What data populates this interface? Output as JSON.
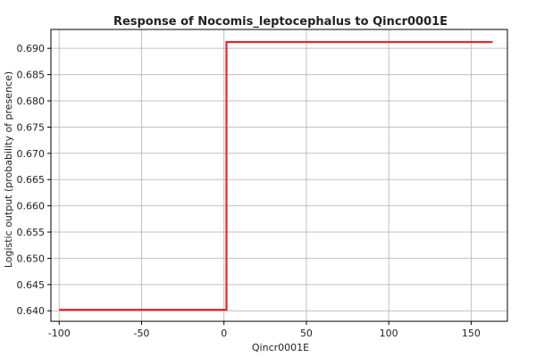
{
  "chart_data": {
    "type": "line",
    "title": "Response of Nocomis_leptocephalus to Qincr0001E",
    "xlabel": "Qincr0001E",
    "ylabel": "Logistic output (probability of presence)",
    "xlim": [
      -105,
      172
    ],
    "ylim": [
      0.638,
      0.6936
    ],
    "xticks": [
      -100,
      -50,
      0,
      50,
      100,
      150
    ],
    "yticks": [
      0.64,
      0.645,
      0.65,
      0.655,
      0.66,
      0.665,
      0.67,
      0.675,
      0.68,
      0.685,
      0.69
    ],
    "ytick_labels": [
      "0.640",
      "0.645",
      "0.650",
      "0.655",
      "0.660",
      "0.665",
      "0.670",
      "0.675",
      "0.680",
      "0.685",
      "0.690"
    ],
    "grid": true,
    "colors": {
      "line": "#e8262b",
      "grid": "#c0c0c0",
      "axis": "#000000"
    },
    "series": [
      {
        "x": [
          -100,
          1.5,
          1.5,
          163
        ],
        "y": [
          0.6402,
          0.6402,
          0.6912,
          0.6912
        ]
      }
    ]
  }
}
